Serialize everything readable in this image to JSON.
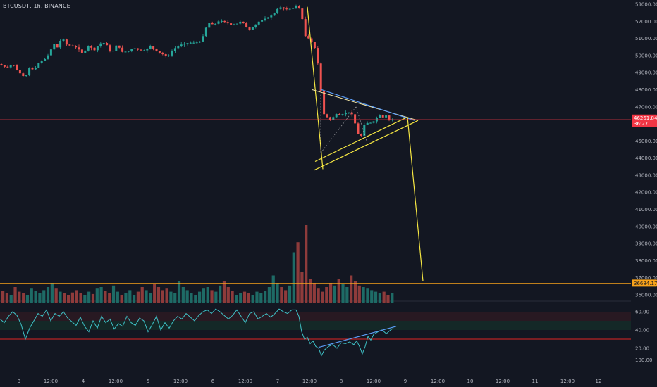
{
  "header": {
    "symbol_title": "BTCUSDT, 1h, BINANCE"
  },
  "colors": {
    "background": "#131722",
    "up": "#26a69a",
    "down": "#ef5350",
    "volume_up": "#1e6b66",
    "volume_down": "#8e3b3b",
    "yellow": "#f5e642",
    "blue": "#5b9cf6",
    "rsi_line": "#3fc2c7",
    "rsi_level": "#e02424",
    "axis_text": "#b2b5be",
    "price_badge": "#f23645",
    "level_badge": "#f7a21b"
  },
  "chart_data": {
    "type": "candlestick",
    "symbol": "BTCUSDT",
    "interval": "1h",
    "exchange": "BINANCE",
    "price_axis": {
      "ylim": [
        36000,
        53000
      ],
      "ticks": [
        "53000.00",
        "52000.00",
        "51000.00",
        "50000.00",
        "49000.00",
        "48000.00",
        "47000.00",
        "45000.00",
        "44000.00",
        "43000.00",
        "42000.00",
        "41000.00",
        "40000.00",
        "39000.00",
        "38000.00",
        "37000.00",
        "36000.00"
      ]
    },
    "time_axis": {
      "ticks": [
        "3",
        "12:00",
        "4",
        "12:00",
        "5",
        "12:00",
        "6",
        "12:00",
        "7",
        "12:00",
        "8",
        "12:00",
        "9",
        "12:00",
        "10",
        "12:00",
        "11",
        "12:00",
        "12"
      ]
    },
    "last_price": {
      "value": "46261.84",
      "countdown": "36:27"
    },
    "target_level": {
      "value": "36684.17"
    },
    "rsi_axis": {
      "ticks": [
        "60.00",
        "40.00",
        "20.00"
      ],
      "bottom_tick": "100.00",
      "level": 30
    },
    "price_path": [
      [
        0,
        49500
      ],
      [
        8,
        49350
      ],
      [
        14,
        49300
      ],
      [
        20,
        49550
      ],
      [
        26,
        49150
      ],
      [
        32,
        48900
      ],
      [
        38,
        48700
      ],
      [
        44,
        49300
      ],
      [
        50,
        49150
      ],
      [
        58,
        49600
      ],
      [
        66,
        49800
      ],
      [
        72,
        50100
      ],
      [
        78,
        50700
      ],
      [
        84,
        50450
      ],
      [
        90,
        51100
      ],
      [
        96,
        50650
      ],
      [
        104,
        50550
      ],
      [
        112,
        50450
      ],
      [
        120,
        50100
      ],
      [
        128,
        50600
      ],
      [
        136,
        50300
      ],
      [
        144,
        50700
      ],
      [
        152,
        50750
      ],
      [
        160,
        50100
      ],
      [
        168,
        50650
      ],
      [
        176,
        50200
      ],
      [
        184,
        50250
      ],
      [
        192,
        50450
      ],
      [
        200,
        50300
      ],
      [
        208,
        50300
      ],
      [
        216,
        50550
      ],
      [
        224,
        50250
      ],
      [
        232,
        50100
      ],
      [
        240,
        49900
      ],
      [
        248,
        50350
      ],
      [
        256,
        50600
      ],
      [
        264,
        50700
      ],
      [
        272,
        50750
      ],
      [
        280,
        50750
      ],
      [
        288,
        50850
      ],
      [
        293,
        51500
      ],
      [
        298,
        51900
      ],
      [
        306,
        51800
      ],
      [
        314,
        52050
      ],
      [
        322,
        51950
      ],
      [
        330,
        51800
      ],
      [
        338,
        51850
      ],
      [
        346,
        52050
      ],
      [
        350,
        51700
      ],
      [
        356,
        51500
      ],
      [
        362,
        51700
      ],
      [
        370,
        52000
      ],
      [
        378,
        52150
      ],
      [
        386,
        52300
      ],
      [
        392,
        52500
      ],
      [
        398,
        52850
      ],
      [
        404,
        52750
      ],
      [
        410,
        52700
      ],
      [
        416,
        52750
      ],
      [
        422,
        52900
      ],
      [
        426,
        52800
      ],
      [
        430,
        52450
      ],
      [
        433,
        51500
      ],
      [
        436,
        51050
      ],
      [
        440,
        51000
      ],
      [
        444,
        50800
      ],
      [
        448,
        50400
      ],
      [
        452,
        50700
      ],
      [
        455,
        47200
      ],
      [
        458,
        48100
      ],
      [
        461,
        46600
      ],
      [
        466,
        46400
      ],
      [
        472,
        46200
      ],
      [
        478,
        46600
      ],
      [
        484,
        46500
      ],
      [
        490,
        46600
      ],
      [
        496,
        46700
      ],
      [
        502,
        46550
      ],
      [
        506,
        46000
      ],
      [
        510,
        45400
      ],
      [
        514,
        45200
      ],
      [
        518,
        45900
      ],
      [
        522,
        46100
      ],
      [
        526,
        45950
      ],
      [
        530,
        46200
      ],
      [
        534,
        46100
      ],
      [
        538,
        46500
      ],
      [
        542,
        46550
      ],
      [
        546,
        46350
      ],
      [
        550,
        46500
      ],
      [
        554,
        46250
      ],
      [
        557,
        46260
      ]
    ],
    "volume": {
      "max_value_label": "",
      "relative_heights": [
        0.15,
        0.12,
        0.1,
        0.2,
        0.14,
        0.12,
        0.1,
        0.18,
        0.15,
        0.12,
        0.16,
        0.2,
        0.25,
        0.18,
        0.14,
        0.12,
        0.1,
        0.13,
        0.16,
        0.12,
        0.1,
        0.14,
        0.11,
        0.18,
        0.2,
        0.15,
        0.12,
        0.22,
        0.14,
        0.1,
        0.12,
        0.16,
        0.1,
        0.14,
        0.2,
        0.16,
        0.12,
        0.24,
        0.2,
        0.16,
        0.18,
        0.14,
        0.12,
        0.28,
        0.2,
        0.16,
        0.12,
        0.1,
        0.14,
        0.18,
        0.2,
        0.16,
        0.14,
        0.22,
        0.28,
        0.2,
        0.15,
        0.1,
        0.12,
        0.14,
        0.12,
        0.1,
        0.14,
        0.12,
        0.15,
        0.2,
        0.35,
        0.25,
        0.2,
        0.16,
        0.22,
        0.65,
        0.78,
        0.4,
        1.0,
        0.3,
        0.25,
        0.18,
        0.14,
        0.2,
        0.25,
        0.22,
        0.3,
        0.24,
        0.2,
        0.35,
        0.28,
        0.22,
        0.2,
        0.18,
        0.16,
        0.14,
        0.12,
        0.14,
        0.1,
        0.12
      ]
    },
    "rsi_path": [
      [
        0,
        52
      ],
      [
        6,
        48
      ],
      [
        12,
        55
      ],
      [
        18,
        60
      ],
      [
        24,
        56
      ],
      [
        30,
        46
      ],
      [
        36,
        30
      ],
      [
        42,
        42
      ],
      [
        48,
        50
      ],
      [
        54,
        58
      ],
      [
        60,
        55
      ],
      [
        66,
        62
      ],
      [
        72,
        50
      ],
      [
        78,
        58
      ],
      [
        84,
        55
      ],
      [
        90,
        60
      ],
      [
        96,
        53
      ],
      [
        102,
        49
      ],
      [
        108,
        45
      ],
      [
        114,
        54
      ],
      [
        120,
        44
      ],
      [
        126,
        38
      ],
      [
        132,
        50
      ],
      [
        138,
        42
      ],
      [
        144,
        55
      ],
      [
        150,
        48
      ],
      [
        156,
        52
      ],
      [
        162,
        41
      ],
      [
        168,
        47
      ],
      [
        174,
        44
      ],
      [
        180,
        55
      ],
      [
        186,
        48
      ],
      [
        192,
        45
      ],
      [
        198,
        53
      ],
      [
        204,
        50
      ],
      [
        210,
        38
      ],
      [
        216,
        46
      ],
      [
        222,
        55
      ],
      [
        228,
        40
      ],
      [
        234,
        48
      ],
      [
        240,
        42
      ],
      [
        246,
        50
      ],
      [
        252,
        55
      ],
      [
        258,
        52
      ],
      [
        264,
        58
      ],
      [
        270,
        54
      ],
      [
        276,
        50
      ],
      [
        282,
        56
      ],
      [
        288,
        60
      ],
      [
        294,
        62
      ],
      [
        300,
        58
      ],
      [
        306,
        63
      ],
      [
        312,
        60
      ],
      [
        318,
        56
      ],
      [
        324,
        52
      ],
      [
        330,
        56
      ],
      [
        336,
        62
      ],
      [
        342,
        55
      ],
      [
        348,
        48
      ],
      [
        354,
        58
      ],
      [
        360,
        60
      ],
      [
        366,
        52
      ],
      [
        372,
        55
      ],
      [
        378,
        58
      ],
      [
        384,
        54
      ],
      [
        390,
        58
      ],
      [
        396,
        63
      ],
      [
        402,
        60
      ],
      [
        408,
        58
      ],
      [
        414,
        62
      ],
      [
        420,
        62
      ],
      [
        424,
        55
      ],
      [
        428,
        38
      ],
      [
        432,
        30
      ],
      [
        436,
        32
      ],
      [
        440,
        25
      ],
      [
        444,
        28
      ],
      [
        448,
        22
      ],
      [
        452,
        20
      ],
      [
        456,
        12
      ],
      [
        460,
        18
      ],
      [
        466,
        22
      ],
      [
        472,
        24
      ],
      [
        478,
        20
      ],
      [
        484,
        26
      ],
      [
        490,
        25
      ],
      [
        496,
        27
      ],
      [
        502,
        24
      ],
      [
        506,
        28
      ],
      [
        510,
        22
      ],
      [
        514,
        14
      ],
      [
        518,
        22
      ],
      [
        522,
        33
      ],
      [
        526,
        29
      ],
      [
        530,
        35
      ],
      [
        536,
        38
      ],
      [
        542,
        40
      ],
      [
        548,
        36
      ],
      [
        554,
        40
      ],
      [
        558,
        42
      ]
    ],
    "drawings": {
      "impulse_drop": {
        "from": {
          "x": 436,
          "price": 52850
        },
        "to": {
          "x": 458,
          "price": 43350
        }
      },
      "triangle_upper": {
        "from": {
          "x": 443,
          "price": 48000
        },
        "to": {
          "x": 593,
          "price": 46200
        }
      },
      "triangle_lower_outer": {
        "from": {
          "x": 446,
          "price": 43300
        },
        "to": {
          "x": 593,
          "price": 46200
        }
      },
      "triangle_lower_inner": {
        "from": {
          "x": 447,
          "price": 43800
        },
        "to": {
          "x": 578,
          "price": 46400
        }
      },
      "blue_resistance": {
        "from": {
          "x": 456,
          "price": 48000
        },
        "to": {
          "x": 588,
          "price": 46200
        }
      },
      "target_projection": {
        "from": {
          "x": 578,
          "price": 46400
        },
        "to": {
          "x": 600,
          "price": 36800
        }
      },
      "rsi_divergence": {
        "from": {
          "x": 452,
          "rsi": 21
        },
        "to": {
          "x": 562,
          "rsi": 44
        }
      }
    }
  }
}
